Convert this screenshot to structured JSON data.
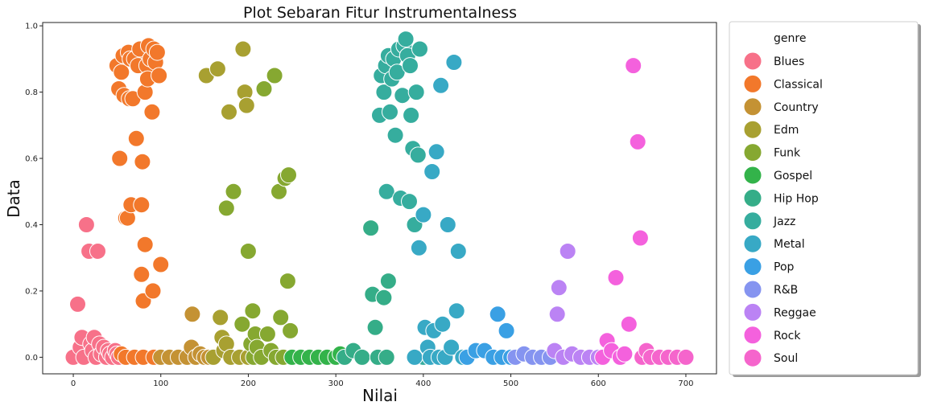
{
  "chart_data": {
    "type": "scatter",
    "title": "Plot Sebaran Fitur Instrumentalness",
    "xlabel": "Nilai",
    "ylabel": "Data",
    "xlim": [
      -35,
      735
    ],
    "ylim": [
      -0.05,
      1.01
    ],
    "xticks": [
      "0",
      "100",
      "200",
      "300",
      "400",
      "500",
      "600",
      "700"
    ],
    "yticks": [
      "0.0",
      "0.2",
      "0.4",
      "0.6",
      "0.8",
      "1.0"
    ],
    "legend_title": "genre",
    "legend_position": "outside-right",
    "grid": false,
    "series": [
      {
        "name": "Blues",
        "color": "#f77189",
        "points": [
          [
            0,
            0.0
          ],
          [
            5,
            0.16
          ],
          [
            8,
            0.03
          ],
          [
            10,
            0.06
          ],
          [
            12,
            0.0
          ],
          [
            15,
            0.4
          ],
          [
            18,
            0.32
          ],
          [
            20,
            0.04
          ],
          [
            22,
            0.02
          ],
          [
            24,
            0.06
          ],
          [
            26,
            0.0
          ],
          [
            28,
            0.32
          ],
          [
            30,
            0.04
          ],
          [
            32,
            0.01
          ],
          [
            35,
            0.03
          ],
          [
            38,
            0.0
          ],
          [
            40,
            0.02
          ],
          [
            42,
            0.01
          ],
          [
            45,
            0.0
          ],
          [
            48,
            0.02
          ],
          [
            50,
            0.01
          ],
          [
            52,
            0.0
          ]
        ]
      },
      {
        "name": "Classical",
        "color": "#f2782b",
        "points": [
          [
            50,
            0.88
          ],
          [
            52,
            0.81
          ],
          [
            53,
            0.6
          ],
          [
            55,
            0.86
          ],
          [
            57,
            0.91
          ],
          [
            58,
            0.79
          ],
          [
            60,
            0.42
          ],
          [
            62,
            0.42
          ],
          [
            63,
            0.92
          ],
          [
            64,
            0.78
          ],
          [
            65,
            0.9
          ],
          [
            66,
            0.46
          ],
          [
            68,
            0.78
          ],
          [
            70,
            0.9
          ],
          [
            72,
            0.66
          ],
          [
            74,
            0.88
          ],
          [
            76,
            0.93
          ],
          [
            78,
            0.46
          ],
          [
            78,
            0.25
          ],
          [
            79,
            0.59
          ],
          [
            80,
            0.17
          ],
          [
            82,
            0.34
          ],
          [
            82,
            0.8
          ],
          [
            84,
            0.88
          ],
          [
            85,
            0.84
          ],
          [
            86,
            0.94
          ],
          [
            88,
            0.9
          ],
          [
            90,
            0.74
          ],
          [
            91,
            0.2
          ],
          [
            92,
            0.93
          ],
          [
            94,
            0.89
          ],
          [
            96,
            0.92
          ],
          [
            98,
            0.85
          ],
          [
            100,
            0.28
          ],
          [
            55,
            0.01
          ],
          [
            60,
            0.0
          ],
          [
            70,
            0.0
          ],
          [
            80,
            0.0
          ],
          [
            92,
            0.0
          ]
        ]
      },
      {
        "name": "Country",
        "color": "#c49234",
        "points": [
          [
            100,
            0.0
          ],
          [
            110,
            0.0
          ],
          [
            120,
            0.0
          ],
          [
            130,
            0.0
          ],
          [
            135,
            0.03
          ],
          [
            136,
            0.13
          ],
          [
            140,
            0.0
          ],
          [
            145,
            0.01
          ],
          [
            150,
            0.0
          ],
          [
            155,
            0.0
          ]
        ]
      },
      {
        "name": "Edm",
        "color": "#a8a031",
        "points": [
          [
            152,
            0.85
          ],
          [
            160,
            0.0
          ],
          [
            165,
            0.87
          ],
          [
            168,
            0.12
          ],
          [
            170,
            0.06
          ],
          [
            172,
            0.02
          ],
          [
            175,
            0.04
          ],
          [
            178,
            0.74
          ],
          [
            180,
            0.0
          ],
          [
            190,
            0.0
          ],
          [
            194,
            0.93
          ],
          [
            196,
            0.8
          ],
          [
            198,
            0.76
          ],
          [
            200,
            0.0
          ]
        ]
      },
      {
        "name": "Funk",
        "color": "#86a831",
        "points": [
          [
            175,
            0.45
          ],
          [
            183,
            0.5
          ],
          [
            193,
            0.1
          ],
          [
            200,
            0.32
          ],
          [
            203,
            0.04
          ],
          [
            205,
            0.14
          ],
          [
            206,
            0.0
          ],
          [
            208,
            0.07
          ],
          [
            210,
            0.03
          ],
          [
            215,
            0.0
          ],
          [
            218,
            0.81
          ],
          [
            222,
            0.07
          ],
          [
            226,
            0.02
          ],
          [
            230,
            0.85
          ],
          [
            232,
            0.0
          ],
          [
            235,
            0.5
          ],
          [
            237,
            0.12
          ],
          [
            240,
            0.0
          ],
          [
            242,
            0.54
          ],
          [
            245,
            0.23
          ],
          [
            246,
            0.55
          ],
          [
            248,
            0.08
          ],
          [
            250,
            0.0
          ]
        ]
      },
      {
        "name": "Gospel",
        "color": "#33b34a",
        "points": [
          [
            250,
            0.0
          ],
          [
            260,
            0.0
          ],
          [
            270,
            0.0
          ],
          [
            280,
            0.0
          ],
          [
            290,
            0.0
          ],
          [
            300,
            0.0
          ],
          [
            305,
            0.01
          ]
        ]
      },
      {
        "name": "Hip Hop",
        "color": "#35ad88",
        "points": [
          [
            310,
            0.0
          ],
          [
            320,
            0.02
          ],
          [
            330,
            0.0
          ],
          [
            340,
            0.39
          ],
          [
            342,
            0.19
          ],
          [
            345,
            0.09
          ],
          [
            348,
            0.0
          ],
          [
            355,
            0.18
          ],
          [
            358,
            0.0
          ],
          [
            360,
            0.23
          ]
        ]
      },
      {
        "name": "Jazz",
        "color": "#36ad9e",
        "points": [
          [
            350,
            0.73
          ],
          [
            352,
            0.85
          ],
          [
            355,
            0.8
          ],
          [
            357,
            0.88
          ],
          [
            358,
            0.5
          ],
          [
            360,
            0.91
          ],
          [
            362,
            0.74
          ],
          [
            364,
            0.84
          ],
          [
            366,
            0.9
          ],
          [
            368,
            0.67
          ],
          [
            370,
            0.86
          ],
          [
            372,
            0.93
          ],
          [
            374,
            0.48
          ],
          [
            376,
            0.79
          ],
          [
            378,
            0.94
          ],
          [
            380,
            0.96
          ],
          [
            382,
            0.91
          ],
          [
            384,
            0.47
          ],
          [
            385,
            0.88
          ],
          [
            386,
            0.73
          ],
          [
            388,
            0.63
          ],
          [
            390,
            0.4
          ],
          [
            392,
            0.8
          ],
          [
            394,
            0.61
          ],
          [
            396,
            0.93
          ],
          [
            400,
            0.0
          ]
        ]
      },
      {
        "name": "Metal",
        "color": "#38a9c5",
        "points": [
          [
            390,
            0.0
          ],
          [
            395,
            0.33
          ],
          [
            400,
            0.43
          ],
          [
            402,
            0.09
          ],
          [
            405,
            0.03
          ],
          [
            408,
            0.0
          ],
          [
            410,
            0.56
          ],
          [
            412,
            0.08
          ],
          [
            415,
            0.62
          ],
          [
            418,
            0.0
          ],
          [
            420,
            0.82
          ],
          [
            422,
            0.1
          ],
          [
            425,
            0.0
          ],
          [
            428,
            0.4
          ],
          [
            432,
            0.03
          ],
          [
            435,
            0.89
          ],
          [
            438,
            0.14
          ],
          [
            440,
            0.32
          ],
          [
            445,
            0.0
          ]
        ]
      },
      {
        "name": "Pop",
        "color": "#3aa0e4",
        "points": [
          [
            450,
            0.0
          ],
          [
            460,
            0.02
          ],
          [
            470,
            0.02
          ],
          [
            480,
            0.0
          ],
          [
            485,
            0.13
          ],
          [
            490,
            0.0
          ],
          [
            495,
            0.08
          ],
          [
            500,
            0.0
          ]
        ]
      },
      {
        "name": "R&B",
        "color": "#8594f0",
        "points": [
          [
            505,
            0.0
          ],
          [
            515,
            0.01
          ],
          [
            525,
            0.0
          ],
          [
            535,
            0.0
          ],
          [
            545,
            0.0
          ]
        ]
      },
      {
        "name": "Reggae",
        "color": "#bb83f4",
        "points": [
          [
            550,
            0.02
          ],
          [
            553,
            0.13
          ],
          [
            555,
            0.21
          ],
          [
            560,
            0.0
          ],
          [
            565,
            0.32
          ],
          [
            570,
            0.01
          ],
          [
            580,
            0.0
          ],
          [
            590,
            0.0
          ],
          [
            600,
            0.0
          ]
        ]
      },
      {
        "name": "Rock",
        "color": "#f461dd",
        "points": [
          [
            605,
            0.0
          ],
          [
            610,
            0.05
          ],
          [
            615,
            0.02
          ],
          [
            620,
            0.24
          ],
          [
            625,
            0.0
          ],
          [
            630,
            0.01
          ],
          [
            635,
            0.1
          ],
          [
            640,
            0.88
          ],
          [
            645,
            0.65
          ],
          [
            648,
            0.36
          ],
          [
            650,
            0.0
          ]
        ]
      },
      {
        "name": "Soul",
        "color": "#f565cc",
        "points": [
          [
            650,
            0.0
          ],
          [
            655,
            0.02
          ],
          [
            660,
            0.0
          ],
          [
            670,
            0.0
          ],
          [
            680,
            0.0
          ],
          [
            690,
            0.0
          ],
          [
            700,
            0.0
          ]
        ]
      }
    ]
  }
}
